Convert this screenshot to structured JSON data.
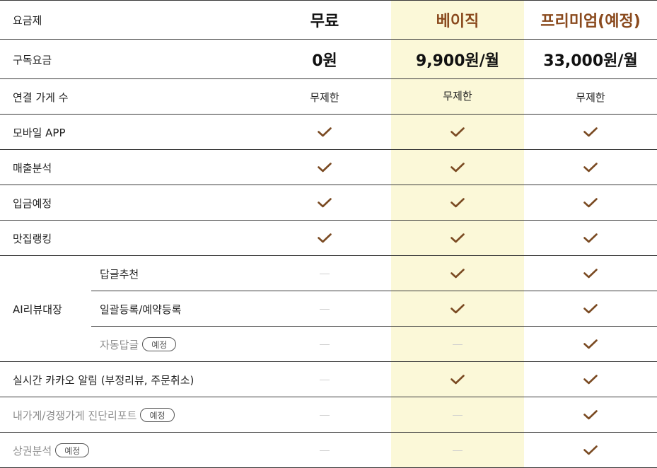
{
  "header": {
    "label": "요금제",
    "plans": [
      "무료",
      "베이직",
      "프리미엄(예정)"
    ]
  },
  "price_row": {
    "label": "구독요금",
    "prices": [
      "0원",
      "9,900원/월",
      "33,000원/월"
    ]
  },
  "store_row": {
    "label": "연결 가게 수",
    "values": [
      "무제한",
      "무제한",
      "무제한"
    ]
  },
  "features": [
    {
      "label": "모바일 APP",
      "avail": [
        "check",
        "check",
        "check"
      ]
    },
    {
      "label": "매출분석",
      "avail": [
        "check",
        "check",
        "check"
      ]
    },
    {
      "label": "입금예정",
      "avail": [
        "check",
        "check",
        "check"
      ]
    },
    {
      "label": "맛집랭킹",
      "avail": [
        "check",
        "check",
        "check"
      ]
    }
  ],
  "ai_group": {
    "label": "AI리뷰대장",
    "items": [
      {
        "label": "답글추천",
        "avail": [
          "dash",
          "check",
          "check"
        ]
      },
      {
        "label": "일괄등록/예약등록",
        "avail": [
          "dash",
          "check",
          "check"
        ]
      },
      {
        "label": "자동답글",
        "badge": "예정",
        "avail": [
          "dash",
          "dash",
          "check"
        ]
      }
    ]
  },
  "extra_features": [
    {
      "label": "실시간 카카오 알림 (부정리뷰, 주문취소)",
      "avail": [
        "dash",
        "check",
        "check"
      ]
    },
    {
      "label": "내가게/경쟁가게 진단리포트",
      "badge": "예정",
      "avail": [
        "dash",
        "dash",
        "check"
      ]
    },
    {
      "label": "상권분석",
      "badge": "예정",
      "avail": [
        "dash",
        "dash",
        "check"
      ]
    }
  ],
  "colors": {
    "highlight_column": "#fbf8d8",
    "check": "#7a4a22",
    "accent_text": "#8a4a1e",
    "dash": "#cfcfcf"
  },
  "icons": {
    "check": "check-icon",
    "dash": "dash-icon"
  }
}
